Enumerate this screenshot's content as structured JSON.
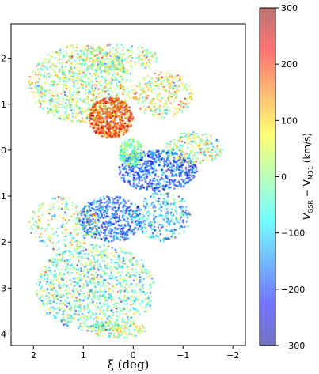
{
  "chart_data": {
    "type": "scatter",
    "title": "",
    "xlabel": "ξ (deg)",
    "ylabel": "",
    "xlim": [
      2.45,
      -2.25
    ],
    "ylim": [
      4.25,
      -2.75
    ],
    "x_inverted": true,
    "y_inverted": true,
    "grid": false,
    "x_ticks": [
      {
        "value": 2,
        "label": "2"
      },
      {
        "value": 1,
        "label": "1"
      },
      {
        "value": 0,
        "label": "0"
      },
      {
        "value": -1,
        "label": "−1"
      },
      {
        "value": -2,
        "label": "−2"
      }
    ],
    "y_ticks": [
      {
        "value": -2,
        "label": "2"
      },
      {
        "value": -1,
        "label": "1"
      },
      {
        "value": 0,
        "label": "0"
      },
      {
        "value": 1,
        "label": "1"
      },
      {
        "value": 2,
        "label": "2"
      },
      {
        "value": 3,
        "label": "3"
      },
      {
        "value": 4,
        "label": "4"
      }
    ],
    "colorbar": {
      "label_main": "V",
      "label_sub1": "GSR",
      "label_mid": " − V",
      "label_sub2": "M31",
      "label_unit": " (km/s)",
      "range": [
        -300,
        300
      ],
      "ticks": [
        {
          "value": 300,
          "label": "300"
        },
        {
          "value": 200,
          "label": "200"
        },
        {
          "value": 100,
          "label": "100"
        },
        {
          "value": 0,
          "label": "0"
        },
        {
          "value": -100,
          "label": "−100"
        },
        {
          "value": -200,
          "label": "−200"
        },
        {
          "value": -300,
          "label": "−300"
        }
      ],
      "colormap": "jet",
      "colormap_alpha": 0.55
    },
    "series": [
      {
        "description": "star velocities",
        "regions": [
          {
            "cx": 1.05,
            "cy": -1.45,
            "rx": 1.05,
            "ry": 0.85,
            "n": 900,
            "vmean": 20,
            "vsd": 90
          },
          {
            "cx": 0.45,
            "cy": -0.7,
            "rx": 0.45,
            "ry": 0.45,
            "n": 700,
            "vmean": 190,
            "vsd": 70
          },
          {
            "cx": 0.3,
            "cy": -2.0,
            "rx": 0.8,
            "ry": 0.3,
            "n": 250,
            "vmean": 20,
            "vsd": 80
          },
          {
            "cx": -0.6,
            "cy": -1.2,
            "rx": 0.6,
            "ry": 0.5,
            "n": 300,
            "vmean": 60,
            "vsd": 90
          },
          {
            "cx": -0.5,
            "cy": 0.45,
            "rx": 0.8,
            "ry": 0.45,
            "n": 650,
            "vmean": -190,
            "vsd": 60
          },
          {
            "cx": 0.05,
            "cy": 0.05,
            "rx": 0.25,
            "ry": 0.3,
            "n": 220,
            "vmean": -20,
            "vsd": 50
          },
          {
            "cx": -1.2,
            "cy": -0.05,
            "rx": 0.6,
            "ry": 0.35,
            "n": 250,
            "vmean": 10,
            "vsd": 90
          },
          {
            "cx": 0.45,
            "cy": 1.5,
            "rx": 0.65,
            "ry": 0.5,
            "n": 550,
            "vmean": -180,
            "vsd": 70
          },
          {
            "cx": -0.6,
            "cy": 1.45,
            "rx": 0.55,
            "ry": 0.55,
            "n": 300,
            "vmean": -120,
            "vsd": 80
          },
          {
            "cx": 1.4,
            "cy": 1.6,
            "rx": 0.7,
            "ry": 0.6,
            "n": 250,
            "vmean": 20,
            "vsd": 90
          },
          {
            "cx": 0.75,
            "cy": 3.0,
            "rx": 1.2,
            "ry": 0.95,
            "n": 1100,
            "vmean": -30,
            "vsd": 90
          },
          {
            "cx": 0.3,
            "cy": 3.9,
            "rx": 0.55,
            "ry": 0.2,
            "n": 150,
            "vmean": 20,
            "vsd": 80
          }
        ]
      }
    ]
  }
}
